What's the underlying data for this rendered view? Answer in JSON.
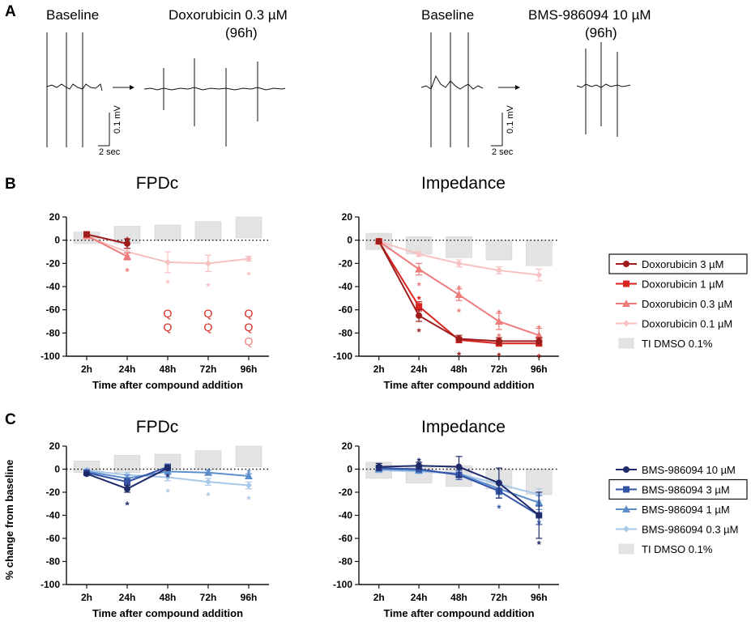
{
  "panel_letters": [
    "A",
    "B",
    "C"
  ],
  "traces": [
    {
      "baseline_label": "Baseline",
      "treatment_label": "Doxorubicin 0.3 µM",
      "duration": "(96h)",
      "scale_y": "0.1 mV",
      "scale_x": "2 sec"
    },
    {
      "baseline_label": "Baseline",
      "treatment_label": "BMS-986094 10 µM",
      "duration": "(96h)",
      "scale_y": "0.1 mV",
      "scale_x": "2 sec"
    }
  ],
  "ylabel_shared": "% change from baseline",
  "colors": {
    "dox3": "#9e1c1c",
    "dox1": "#d9241f",
    "dox03": "#ef7b7b",
    "dox01": "#f7c1c1",
    "bms10": "#1f2a6b",
    "bms3": "#3453a6",
    "bms1": "#5b8fcc",
    "bms03": "#a9c8ea",
    "dmso": "#e3e3e3"
  },
  "legends": [
    {
      "entries": [
        "Doxorubicin 3 µM",
        "Doxorubicin 1 µM",
        "Doxorubicin 0.3 µM",
        "Doxorubicin 0.1 µM",
        "TI DMSO 0.1%"
      ],
      "boxed": 0
    },
    {
      "entries": [
        "BMS-986094 10 µM",
        "BMS-986094 3 µM",
        "BMS-986094 1 µM",
        "BMS-986094 0.3 µM",
        "TI DMSO 0.1%"
      ],
      "boxed": 1
    }
  ],
  "chart_data": [
    {
      "type": "line",
      "panel": "B",
      "title": "FPDc",
      "xlabel": "Time after compound addition",
      "categories": [
        "2h",
        "24h",
        "48h",
        "72h",
        "96h"
      ],
      "ylim": [
        -100,
        20
      ],
      "yticks": [
        20,
        0,
        -20,
        -40,
        -60,
        -80,
        -100
      ],
      "dmso_band": [
        [
          -3,
          7
        ],
        [
          -3,
          12
        ],
        [
          0,
          13
        ],
        [
          0,
          16
        ],
        [
          2,
          20
        ]
      ],
      "series": [
        {
          "name": "Doxorubicin 3 µM",
          "color_key": "dox3",
          "marker": "circle",
          "values": [
            5,
            -3,
            null,
            null,
            null
          ],
          "err": [
            2,
            4,
            0,
            0,
            0
          ]
        },
        {
          "name": "Doxorubicin 1 µM",
          "color_key": "dox1",
          "marker": "square",
          "values": [
            5,
            null,
            null,
            null,
            null
          ],
          "err": [
            2,
            0,
            0,
            0,
            0
          ]
        },
        {
          "name": "Doxorubicin 0.3 µM",
          "color_key": "dox03",
          "marker": "triangle",
          "values": [
            4,
            -14,
            null,
            null,
            null
          ],
          "err": [
            2,
            3,
            0,
            0,
            0
          ]
        },
        {
          "name": "Doxorubicin 0.1 µM",
          "color_key": "dox01",
          "marker": "diamond",
          "values": [
            3,
            -10,
            -19,
            -20,
            -16
          ],
          "err": [
            2,
            3,
            9,
            7,
            2
          ]
        }
      ],
      "annotations": [
        {
          "text": "*",
          "x": "24h",
          "y": 3,
          "color_key": "dox3"
        },
        {
          "text": "*",
          "x": "24h",
          "y": -24,
          "color_key": "dox03"
        },
        {
          "text": "*",
          "x": "48h",
          "y": -34,
          "color_key": "dox01"
        },
        {
          "text": "*",
          "x": "72h",
          "y": -37,
          "color_key": "dox01"
        },
        {
          "text": "*",
          "x": "96h",
          "y": -27,
          "color_key": "dox01"
        },
        {
          "text": "Q",
          "x": "48h",
          "y": -63,
          "color_key": "dox1"
        },
        {
          "text": "Q",
          "x": "48h",
          "y": -75,
          "color_key": "dox1"
        },
        {
          "text": "Q",
          "x": "72h",
          "y": -63,
          "color_key": "dox1"
        },
        {
          "text": "Q",
          "x": "72h",
          "y": -75,
          "color_key": "dox1"
        },
        {
          "text": "Q",
          "x": "96h",
          "y": -63,
          "color_key": "dox1"
        },
        {
          "text": "Q",
          "x": "96h",
          "y": -75,
          "color_key": "dox1"
        },
        {
          "text": "Q",
          "x": "96h",
          "y": -87,
          "color_key": "dox03"
        }
      ]
    },
    {
      "type": "line",
      "panel": "B",
      "title": "Impedance",
      "xlabel": "Time after compound addition",
      "categories": [
        "2h",
        "24h",
        "48h",
        "72h",
        "96h"
      ],
      "ylim": [
        -100,
        20
      ],
      "yticks": [
        20,
        0,
        -20,
        -40,
        -60,
        -80,
        -100
      ],
      "dmso_band": [
        [
          -8,
          6
        ],
        [
          -12,
          3
        ],
        [
          -15,
          3
        ],
        [
          -17,
          0
        ],
        [
          -22,
          0
        ]
      ],
      "series": [
        {
          "name": "Doxorubicin 3 µM",
          "color_key": "dox3",
          "marker": "circle",
          "values": [
            -1,
            -65,
            -85,
            -87,
            -87
          ],
          "err": [
            1,
            5,
            3,
            3,
            3
          ]
        },
        {
          "name": "Doxorubicin 1 µM",
          "color_key": "dox1",
          "marker": "square",
          "values": [
            -1,
            -57,
            -86,
            -89,
            -89
          ],
          "err": [
            1,
            4,
            2,
            2,
            2
          ]
        },
        {
          "name": "Doxorubicin 0.3 µM",
          "color_key": "dox03",
          "marker": "triangle",
          "values": [
            -1,
            -25,
            -47,
            -70,
            -82
          ],
          "err": [
            1,
            5,
            5,
            7,
            6
          ]
        },
        {
          "name": "Doxorubicin 0.1 µM",
          "color_key": "dox01",
          "marker": "diamond",
          "values": [
            -1,
            -12,
            -20,
            -26,
            -30
          ],
          "err": [
            1,
            2,
            3,
            3,
            5
          ]
        }
      ],
      "annotations": [
        {
          "text": "*",
          "x": "24h",
          "y": -36,
          "color_key": "dox03"
        },
        {
          "text": "*",
          "x": "24h",
          "y": -48,
          "color_key": "dox1"
        },
        {
          "text": "*",
          "x": "24h",
          "y": -76,
          "color_key": "dox3"
        },
        {
          "text": "*",
          "x": "48h",
          "y": -39,
          "color_key": "dox03"
        },
        {
          "text": "*",
          "x": "48h",
          "y": -59,
          "color_key": "dox03"
        },
        {
          "text": "*",
          "x": "48h",
          "y": -96,
          "color_key": "dox3"
        },
        {
          "text": "*",
          "x": "72h",
          "y": -60,
          "color_key": "dox03"
        },
        {
          "text": "*",
          "x": "72h",
          "y": -80,
          "color_key": "dox03"
        },
        {
          "text": "*",
          "x": "72h",
          "y": -97,
          "color_key": "dox3"
        },
        {
          "text": "*",
          "x": "96h",
          "y": -73,
          "color_key": "dox03"
        },
        {
          "text": "*",
          "x": "96h",
          "y": -98,
          "color_key": "dox3"
        }
      ]
    },
    {
      "type": "line",
      "panel": "C",
      "title": "FPDc",
      "xlabel": "Time after compound addition",
      "categories": [
        "2h",
        "24h",
        "48h",
        "72h",
        "96h"
      ],
      "ylim": [
        -100,
        20
      ],
      "yticks": [
        20,
        0,
        -20,
        -40,
        -60,
        -80,
        -100
      ],
      "dmso_band": [
        [
          -3,
          7
        ],
        [
          -3,
          12
        ],
        [
          0,
          13
        ],
        [
          0,
          16
        ],
        [
          2,
          20
        ]
      ],
      "series": [
        {
          "name": "BMS-986094 10 µM",
          "color_key": "bms10",
          "marker": "circle",
          "values": [
            -4,
            -17,
            1,
            null,
            null
          ],
          "err": [
            1,
            3,
            2,
            0,
            0
          ]
        },
        {
          "name": "BMS-986094 3 µM",
          "color_key": "bms3",
          "marker": "square",
          "values": [
            -3,
            -11,
            2,
            null,
            null
          ],
          "err": [
            1,
            3,
            2,
            0,
            0
          ]
        },
        {
          "name": "BMS-986094 1 µM",
          "color_key": "bms1",
          "marker": "triangle",
          "values": [
            -2,
            -8,
            -2,
            -3,
            -6
          ],
          "err": [
            1,
            3,
            2,
            2,
            2
          ]
        },
        {
          "name": "BMS-986094 0.3 µM",
          "color_key": "bms03",
          "marker": "diamond",
          "values": [
            -1,
            -5,
            -7,
            -11,
            -14
          ],
          "err": [
            1,
            2,
            3,
            3,
            3
          ]
        }
      ],
      "annotations": [
        {
          "text": "*",
          "x": "24h",
          "y": -28,
          "color_key": "bms10"
        },
        {
          "text": "*",
          "x": "48h",
          "y": -4,
          "color_key": "bms10"
        },
        {
          "text": "*",
          "x": "48h",
          "y": -17,
          "color_key": "bms03"
        },
        {
          "text": "*",
          "x": "72h",
          "y": -20,
          "color_key": "bms03"
        },
        {
          "text": "*",
          "x": "96h",
          "y": 0,
          "color_key": "bms1"
        },
        {
          "text": "*",
          "x": "96h",
          "y": -23,
          "color_key": "bms03"
        }
      ]
    },
    {
      "type": "line",
      "panel": "C",
      "title": "Impedance",
      "xlabel": "Time after compound addition",
      "categories": [
        "2h",
        "24h",
        "48h",
        "72h",
        "96h"
      ],
      "ylim": [
        -100,
        20
      ],
      "yticks": [
        20,
        0,
        -20,
        -40,
        -60,
        -80,
        -100
      ],
      "dmso_band": [
        [
          -8,
          6
        ],
        [
          -12,
          3
        ],
        [
          -15,
          3
        ],
        [
          -17,
          0
        ],
        [
          -22,
          0
        ]
      ],
      "series": [
        {
          "name": "BMS-986094 10 µM",
          "color_key": "bms10",
          "marker": "circle",
          "values": [
            2,
            3,
            2,
            -12,
            -40
          ],
          "err": [
            3,
            3,
            9,
            13,
            20
          ]
        },
        {
          "name": "BMS-986094 3 µM",
          "color_key": "bms3",
          "marker": "square",
          "values": [
            1,
            0,
            -5,
            -19,
            -40
          ],
          "err": [
            2,
            2,
            4,
            6,
            8
          ]
        },
        {
          "name": "BMS-986094 1 µM",
          "color_key": "bms1",
          "marker": "triangle",
          "values": [
            0,
            -1,
            -4,
            -17,
            -29
          ],
          "err": [
            2,
            2,
            3,
            5,
            6
          ]
        },
        {
          "name": "BMS-986094 0.3 µM",
          "color_key": "bms03",
          "marker": "diamond",
          "values": [
            -1,
            -2,
            -4,
            -13,
            -22
          ],
          "err": [
            2,
            2,
            3,
            4,
            5
          ]
        }
      ],
      "annotations": [
        {
          "text": "*",
          "x": "24h",
          "y": 10,
          "color_key": "bms10"
        },
        {
          "text": "*",
          "x": "72h",
          "y": -31,
          "color_key": "bms3"
        },
        {
          "text": "*",
          "x": "96h",
          "y": -44,
          "color_key": "bms3"
        },
        {
          "text": "*",
          "x": "96h",
          "y": -62,
          "color_key": "bms10"
        }
      ]
    }
  ]
}
